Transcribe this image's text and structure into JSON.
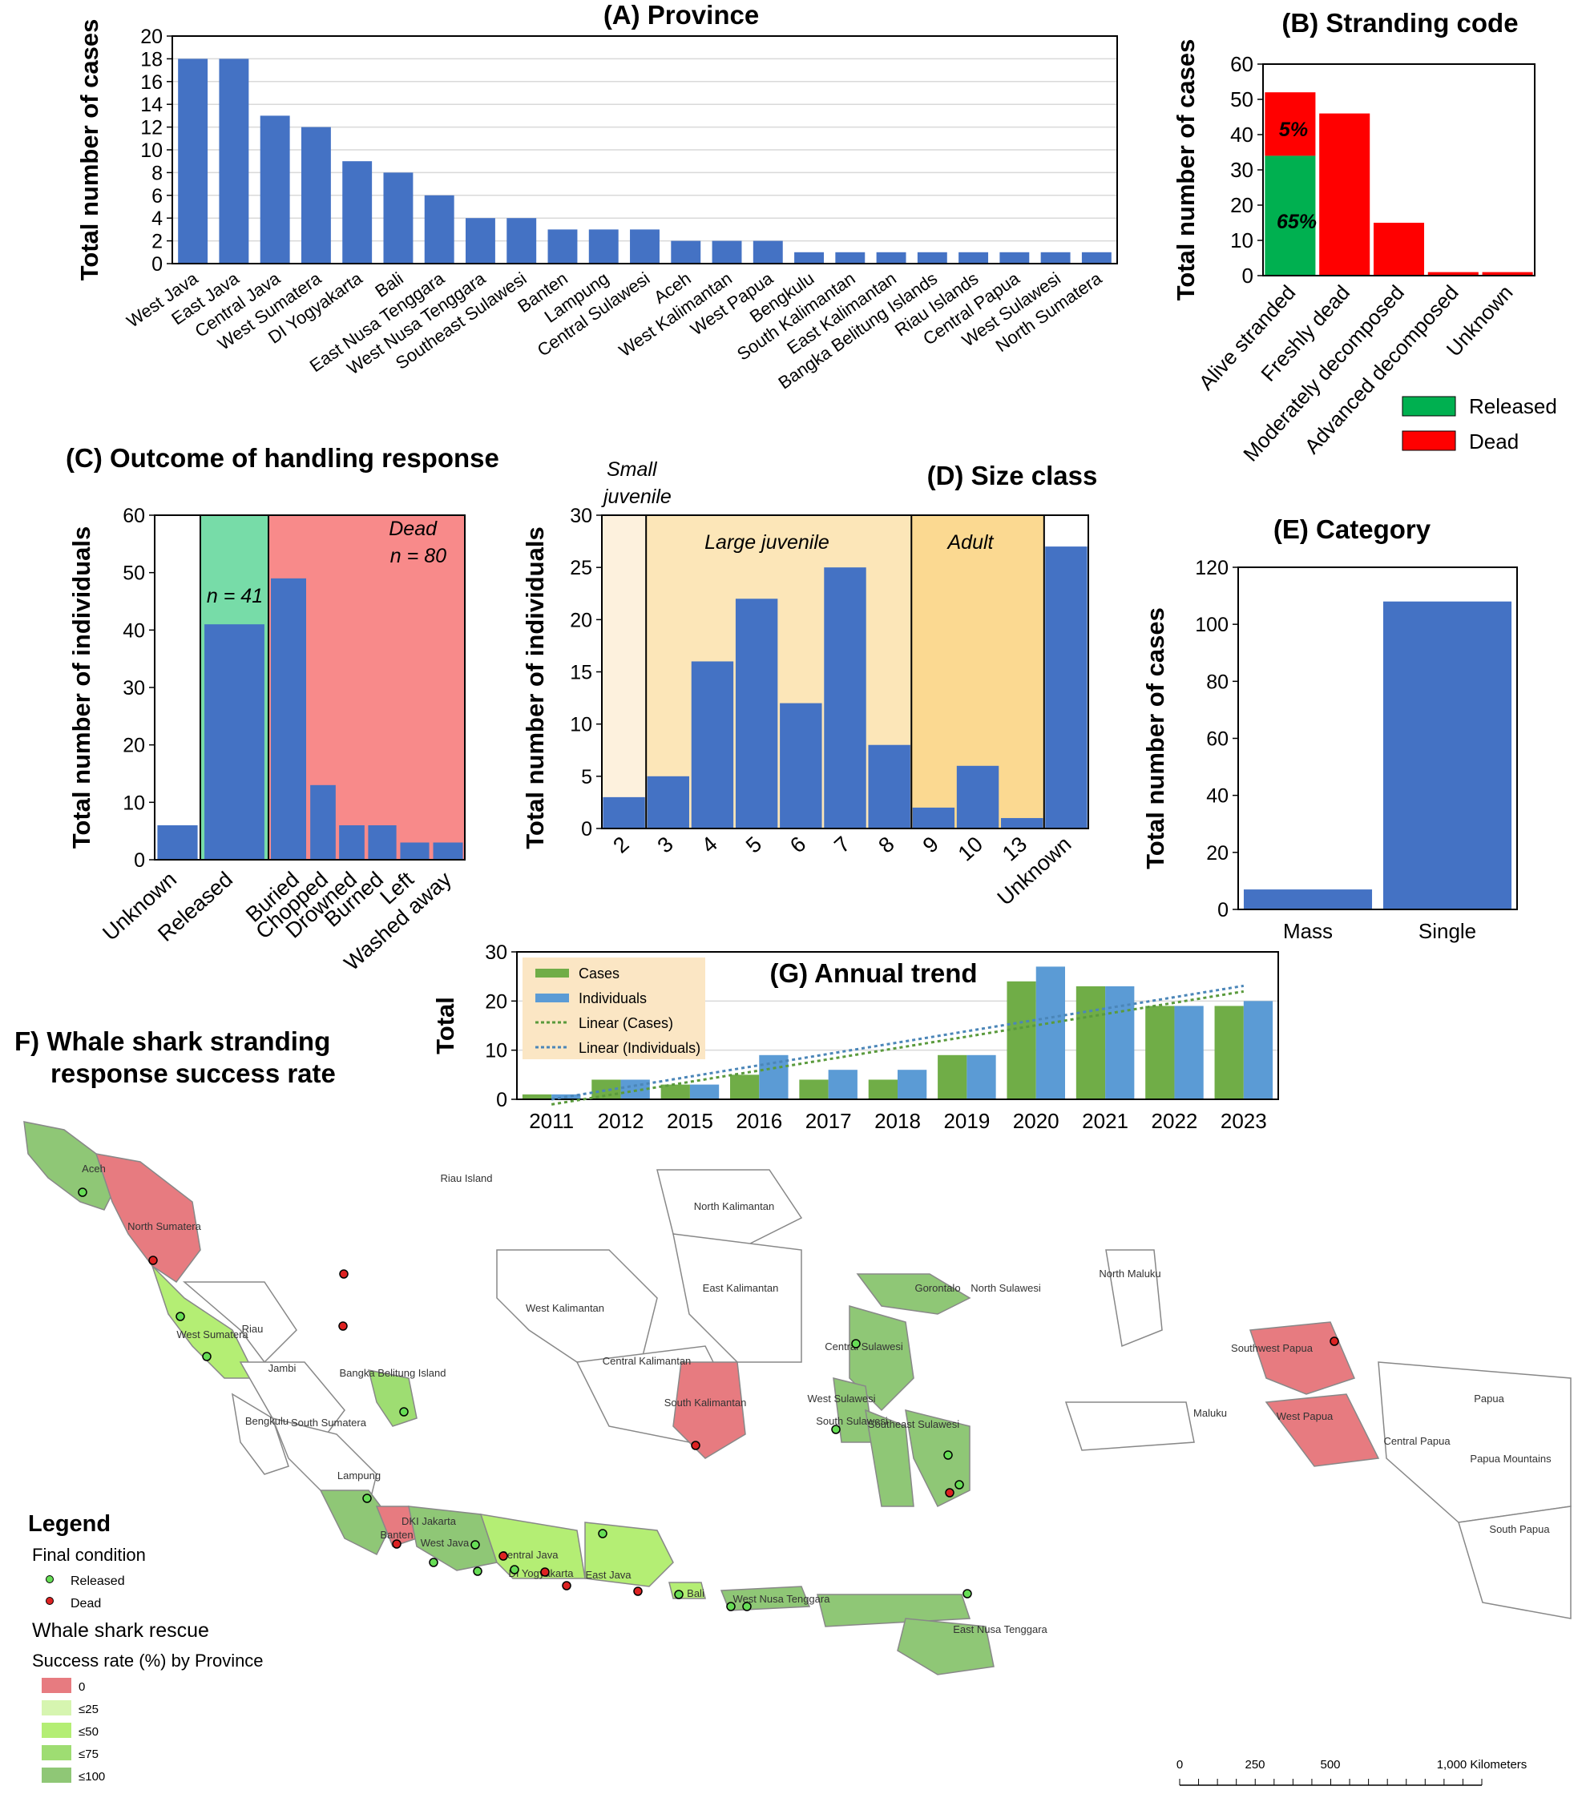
{
  "colors": {
    "bar": "#4472c4",
    "released": "#00b050",
    "dead": "#ff0000",
    "cases": "#70ad47",
    "individuals": "#5b9bd5",
    "zoneReleased": "#77dca8",
    "zoneDead": "#f88a8a",
    "smallJuv": "#fdf1dd",
    "largeJuv": "#fce6b8",
    "adult": "#fbd991",
    "mapDead": "#e77b80",
    "map25": "#d6f5b0",
    "map50": "#b4ee74",
    "map75": "#9edd72",
    "map100": "#8fc776"
  },
  "chart_data": [
    {
      "id": "A",
      "type": "bar",
      "title": "(A) Province",
      "ylabel": "Total number of cases",
      "ylim": [
        0,
        20
      ],
      "yticks": [
        "0",
        "2",
        "4",
        "6",
        "8",
        "10",
        "12",
        "14",
        "16",
        "18",
        "20"
      ],
      "categories": [
        "West Java",
        "East Java",
        "Central Java",
        "West Sumatera",
        "DI Yogyakarta",
        "Bali",
        "East Nusa Tenggara",
        "West Nusa Tenggara",
        "Southeast Sulawesi",
        "Banten",
        "Lampung",
        "Central Sulawesi",
        "Aceh",
        "West Kalimantan",
        "West Papua",
        "Bengkulu",
        "South Kalimantan",
        "East Kalimantan",
        "Bangka Belitung Islands",
        "Riau Islands",
        "Central Papua",
        "West  Sulawesi",
        "North Sumatera"
      ],
      "values": [
        18,
        18,
        13,
        12,
        9,
        8,
        6,
        4,
        4,
        3,
        3,
        3,
        2,
        2,
        2,
        1,
        1,
        1,
        1,
        1,
        1,
        1,
        1
      ]
    },
    {
      "id": "B",
      "type": "bar",
      "title": "(B) Stranding code",
      "ylabel": "Total number of cases",
      "ylim": [
        0,
        60
      ],
      "yticks": [
        "0",
        "10",
        "20",
        "30",
        "40",
        "50",
        "60"
      ],
      "categories": [
        "Alive stranded",
        "Freshly dead",
        "Moderately decomposed",
        "Advanced decomposed",
        "Unknown"
      ],
      "series": [
        {
          "name": "Released",
          "values": [
            34,
            0,
            0,
            0,
            0
          ]
        },
        {
          "name": "Dead",
          "values": [
            18,
            46,
            15,
            1,
            1
          ]
        }
      ],
      "annotations": [
        "65%",
        "5%"
      ],
      "legend": "bottom-right"
    },
    {
      "id": "C",
      "type": "bar",
      "title": "(C) Outcome of handling response",
      "ylabel": "Total number of individuals",
      "ylim": [
        0,
        60
      ],
      "yticks": [
        "0",
        "10",
        "20",
        "30",
        "40",
        "50",
        "60"
      ],
      "categories": [
        "Unknown",
        "Released",
        "Buried",
        "Chopped",
        "Drowned",
        "Burned",
        "Left",
        "Washed away"
      ],
      "values": [
        6,
        41,
        49,
        13,
        6,
        6,
        3,
        3
      ],
      "zones": [
        {
          "label": "n = 41",
          "note": ""
        },
        {
          "label": "Dead",
          "note": "n = 80"
        }
      ]
    },
    {
      "id": "D",
      "type": "bar",
      "title": "(D) Size class",
      "ylabel": "Total number of individuals",
      "ylim": [
        0,
        30
      ],
      "yticks": [
        "0",
        "5",
        "10",
        "15",
        "20",
        "25",
        "30"
      ],
      "categories": [
        "2",
        "3",
        "4",
        "5",
        "6",
        "7",
        "8",
        "9",
        "10",
        "13",
        "Unknown"
      ],
      "values": [
        3,
        5,
        16,
        22,
        12,
        25,
        8,
        2,
        6,
        1,
        27
      ],
      "zones": [
        "Small juvenile",
        "Large juvenile",
        "Adult"
      ]
    },
    {
      "id": "E",
      "type": "bar",
      "title": "(E) Category",
      "ylabel": "Total number of cases",
      "ylim": [
        0,
        120
      ],
      "yticks": [
        "0",
        "20",
        "40",
        "60",
        "80",
        "100",
        "120"
      ],
      "categories": [
        "Mass",
        "Single"
      ],
      "values": [
        7,
        108
      ]
    },
    {
      "id": "G",
      "type": "bar",
      "title": "(G) Annual trend",
      "ylabel": "Total",
      "ylim": [
        0,
        30
      ],
      "yticks": [
        "0",
        "10",
        "20",
        "30"
      ],
      "categories": [
        "2011",
        "2012",
        "2015",
        "2016",
        "2017",
        "2018",
        "2019",
        "2020",
        "2021",
        "2022",
        "2023"
      ],
      "series": [
        {
          "name": "Cases",
          "values": [
            1,
            4,
            3,
            5,
            4,
            4,
            9,
            24,
            23,
            19,
            19
          ]
        },
        {
          "name": "Individuals",
          "values": [
            1,
            4,
            3,
            9,
            6,
            6,
            9,
            27,
            23,
            19,
            20
          ]
        }
      ],
      "trendlines": [
        "Linear (Cases)",
        "Linear (Individuals)"
      ],
      "legend": "top-left"
    }
  ],
  "map": {
    "title_line1": "F) Whale shark stranding",
    "title_line2": "response success rate",
    "legend": {
      "heading": "Legend",
      "final_condition": "Final condition",
      "released": "Released",
      "dead": "Dead",
      "rescue": "Whale shark rescue",
      "success": "Success rate (%) by Province",
      "classes": [
        "0",
        "≤25",
        "≤50",
        "≤75",
        "≤100"
      ]
    },
    "scale": [
      "0",
      "250",
      "500",
      "1,000 Kilometers"
    ],
    "labels": [
      "Aceh",
      "North Sumatera",
      "Riau Island",
      "Riau",
      "West Sumatera",
      "Jambi",
      "Bangka Belitung Island",
      "South Sumatera",
      "Bengkulu",
      "Lampung",
      "DKI Jakarta",
      "Banten",
      "West Java",
      "Central Java",
      "DI Yogyakarta",
      "East Java",
      "Bali",
      "West Nusa Tenggara",
      "East Nusa Tenggara",
      "West Kalimantan",
      "Central Kalimantan",
      "North Kalimantan",
      "East Kalimantan",
      "South Kalimantan",
      "Gorontalo",
      "North Sulawesi",
      "Central Sulawesi",
      "West Sulawesi",
      "South Sulawesi",
      "Southeast Sulawesi",
      "North Maluku",
      "Maluku",
      "Southwest Papua",
      "West Papua",
      "Central Papua",
      "Papua",
      "Papua Mountains",
      "South Papua"
    ]
  }
}
